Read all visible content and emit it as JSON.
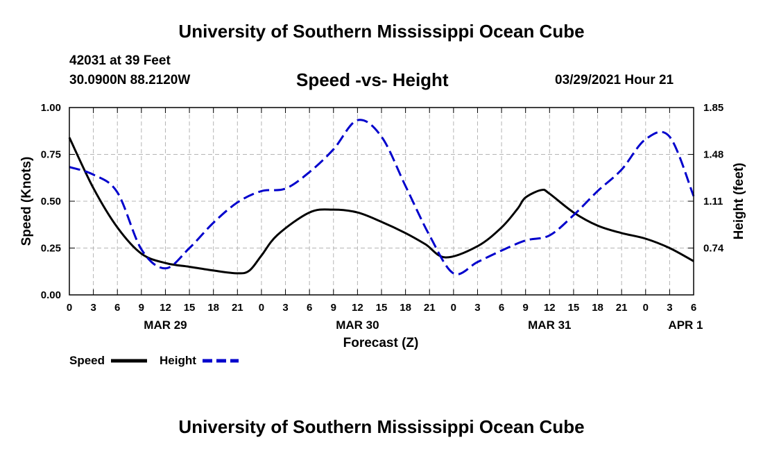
{
  "header": {
    "title": "University of Southern Mississippi Ocean Cube",
    "station": "42031 at 39 Feet",
    "coords": "30.0900N  88.2120W",
    "chart_title": "Speed -vs- Height",
    "datetime": "03/29/2021 Hour 21"
  },
  "footer": {
    "title": "University of Southern Mississippi Ocean Cube"
  },
  "colors": {
    "speed": "#000000",
    "height": "#0000cc",
    "grid": "#b4b4b4"
  },
  "chart_data": {
    "type": "line",
    "title": "Speed -vs- Height",
    "xlabel": "Forecast (Z)",
    "ylabel": "Speed (Knots)",
    "y2label": "Height (feet)",
    "x_unit": "hours since MAR 29 00Z",
    "xlim": [
      0,
      78
    ],
    "ylim": [
      0,
      1.0
    ],
    "y2lim": [
      0.37,
      1.85
    ],
    "x_ticks": [
      0,
      3,
      6,
      9,
      12,
      15,
      18,
      21,
      24,
      27,
      30,
      33,
      36,
      39,
      42,
      45,
      48,
      51,
      54,
      57,
      60,
      63,
      66,
      69,
      72,
      75,
      78
    ],
    "x_tick_labels": [
      "0",
      "3",
      "6",
      "9",
      "12",
      "15",
      "18",
      "21",
      "0",
      "3",
      "6",
      "9",
      "12",
      "15",
      "18",
      "21",
      "0",
      "3",
      "6",
      "9",
      "12",
      "15",
      "18",
      "21",
      "0",
      "3",
      "6"
    ],
    "date_labels": [
      {
        "x": 12,
        "label": "MAR 29"
      },
      {
        "x": 36,
        "label": "MAR 30"
      },
      {
        "x": 60,
        "label": "MAR 31"
      },
      {
        "x": 77,
        "label": "APR 1"
      }
    ],
    "y_ticks": [
      0,
      0.25,
      0.5,
      0.75,
      1.0
    ],
    "y_tick_labels": [
      "0.00",
      "0.25",
      "0.50",
      "0.75",
      "1.00"
    ],
    "y2_ticks": [
      0.74,
      1.11,
      1.48,
      1.85
    ],
    "y2_tick_labels": [
      "0.74",
      "1.11",
      "1.48",
      "1.85"
    ],
    "grid": true,
    "legend": [
      {
        "name": "Speed",
        "style": "solid"
      },
      {
        "name": "Height",
        "style": "dashed"
      }
    ],
    "legend_position": "bottom-left",
    "series": [
      {
        "name": "Speed",
        "axis": "left",
        "x": [
          0,
          3,
          6,
          9,
          12,
          15,
          18,
          21,
          22.5,
          24,
          26,
          30,
          33,
          36,
          39,
          42,
          44.5,
          47,
          51,
          54,
          56,
          57,
          59,
          60,
          63,
          66,
          69,
          72,
          75,
          78
        ],
        "values": [
          0.84,
          0.57,
          0.36,
          0.22,
          0.17,
          0.15,
          0.13,
          0.115,
          0.13,
          0.21,
          0.32,
          0.44,
          0.455,
          0.44,
          0.39,
          0.33,
          0.27,
          0.2,
          0.26,
          0.36,
          0.46,
          0.52,
          0.56,
          0.54,
          0.44,
          0.37,
          0.33,
          0.3,
          0.25,
          0.18
        ]
      },
      {
        "name": "Height",
        "axis": "right",
        "x": [
          0,
          3,
          6,
          9,
          12,
          15,
          18,
          21,
          24,
          27,
          30,
          33,
          36,
          39,
          42,
          45,
          48,
          51,
          54,
          57,
          60,
          63,
          66,
          69,
          72,
          75,
          78
        ],
        "values": [
          1.38,
          1.32,
          1.18,
          0.73,
          0.58,
          0.74,
          0.94,
          1.1,
          1.19,
          1.21,
          1.34,
          1.52,
          1.75,
          1.62,
          1.23,
          0.84,
          0.54,
          0.63,
          0.72,
          0.8,
          0.84,
          1.0,
          1.19,
          1.36,
          1.6,
          1.62,
          1.15
        ]
      }
    ]
  }
}
